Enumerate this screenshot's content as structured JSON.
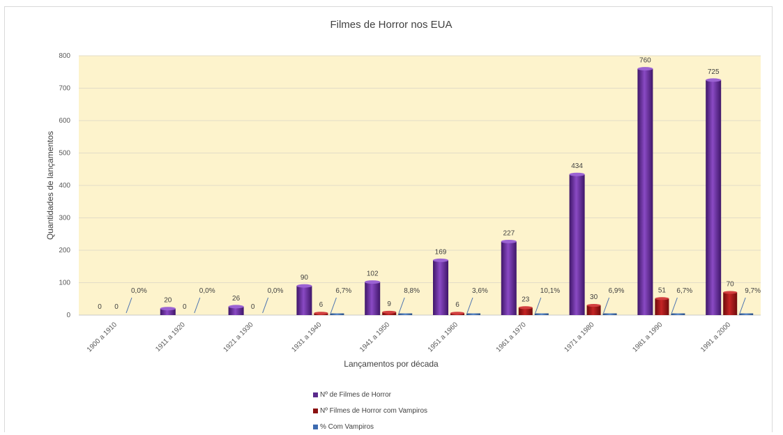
{
  "chart_data": {
    "type": "bar",
    "title": "Filmes de Horror nos EUA",
    "xlabel": "Lançamentos por década",
    "ylabel": "Quantidades de lançamentos",
    "ylim": [
      0,
      800
    ],
    "yticks": [
      0,
      100,
      200,
      300,
      400,
      500,
      600,
      700,
      800
    ],
    "categories": [
      "1900 a 1910",
      "1911 a 1920",
      "1921 a 1930",
      "1931 a 1940",
      "1941 a 1950",
      "1951 a 1960",
      "1961 a 1970",
      "1971 a 1980",
      "1981 a 1990",
      "1991 a 2000"
    ],
    "series": [
      {
        "name": "Nº de Filmes de Horror",
        "color": "#6b2fa0",
        "values": [
          0,
          20,
          26,
          90,
          102,
          169,
          227,
          434,
          760,
          725
        ],
        "labels": [
          "0",
          "20",
          "26",
          "90",
          "102",
          "169",
          "227",
          "434",
          "760",
          "725"
        ]
      },
      {
        "name": "Nº Filmes de Horror com Vampiros",
        "color": "#a01414",
        "values": [
          0,
          0,
          0,
          6,
          9,
          6,
          23,
          30,
          51,
          70
        ],
        "labels": [
          "0",
          "0",
          "0",
          "6",
          "9",
          "6",
          "23",
          "30",
          "51",
          "70"
        ]
      },
      {
        "name": "% Com Vampiros",
        "color": "#3d6bb0",
        "values": [
          0.0,
          0.0,
          0.0,
          6.7,
          8.8,
          3.6,
          10.1,
          6.9,
          6.7,
          9.7
        ],
        "labels": [
          "0,0%",
          "0,0%",
          "0,0%",
          "6,7%",
          "8,8%",
          "3,6%",
          "10,1%",
          "6,9%",
          "6,7%",
          "9,7%"
        ]
      }
    ],
    "plot_background": "#fdf3cc",
    "grid": true,
    "legend_position": "bottom"
  }
}
